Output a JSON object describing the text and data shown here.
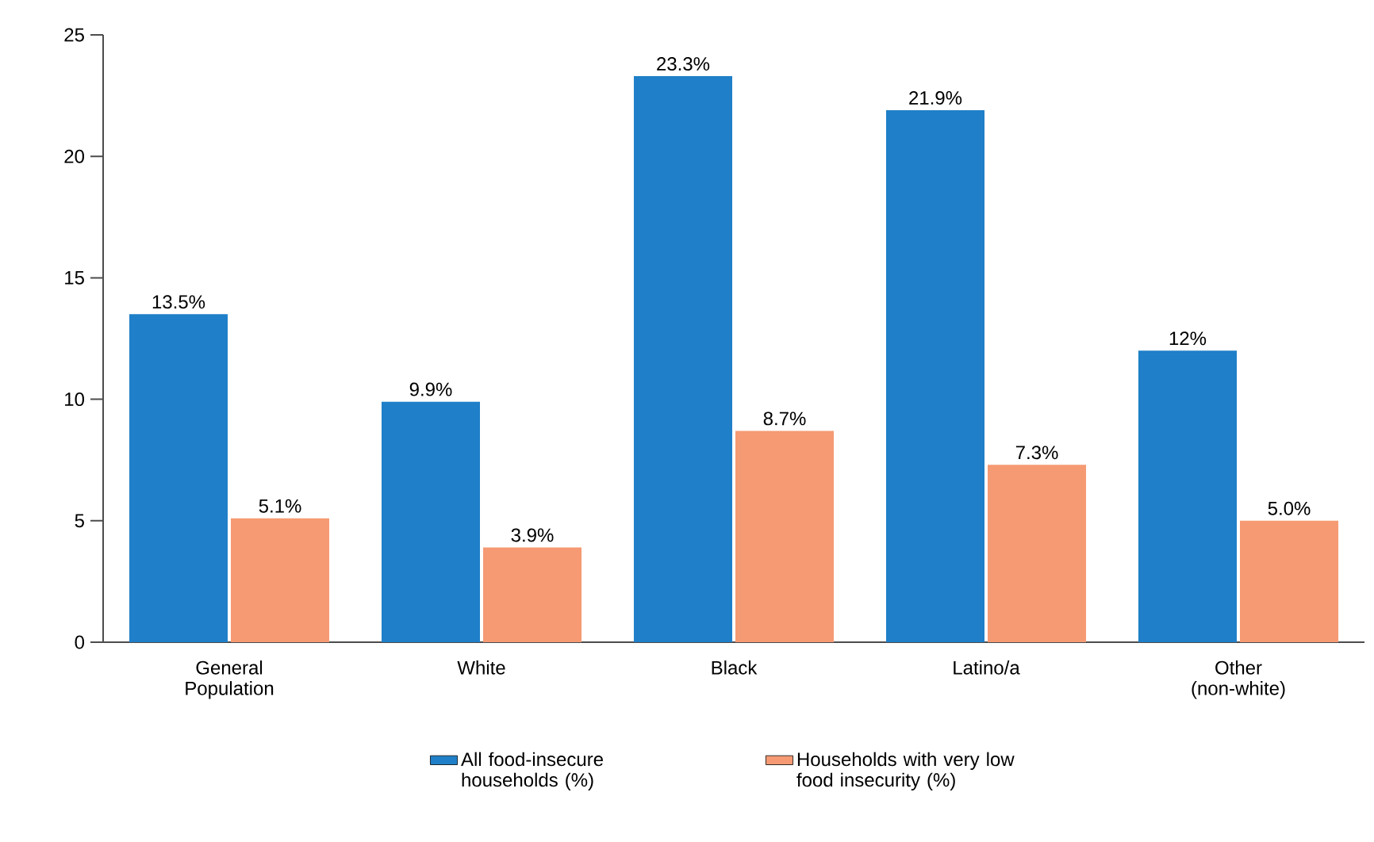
{
  "chart_data": {
    "type": "bar",
    "categories": [
      "General Population",
      "White",
      "Black",
      "Latino/a",
      "Other (non-white)"
    ],
    "series": [
      {
        "name": "All food-insecure households (%)",
        "color": "#1f7fc8",
        "values": [
          13.5,
          9.9,
          23.3,
          21.9,
          12
        ],
        "value_labels": [
          "13.5%",
          "9.9%",
          "23.3%",
          "21.9%",
          "12%"
        ]
      },
      {
        "name": "Households with very low food insecurity (%)",
        "color": "#f59a73",
        "values": [
          5.1,
          3.9,
          8.7,
          7.3,
          5.0
        ],
        "value_labels": [
          "5.1%",
          "3.9%",
          "8.7%",
          "7.3%",
          "5.0%"
        ]
      }
    ],
    "ylim": [
      0,
      25
    ],
    "yticks": [
      0,
      5,
      10,
      15,
      20,
      25
    ],
    "legend": "bottom",
    "grid": false
  }
}
